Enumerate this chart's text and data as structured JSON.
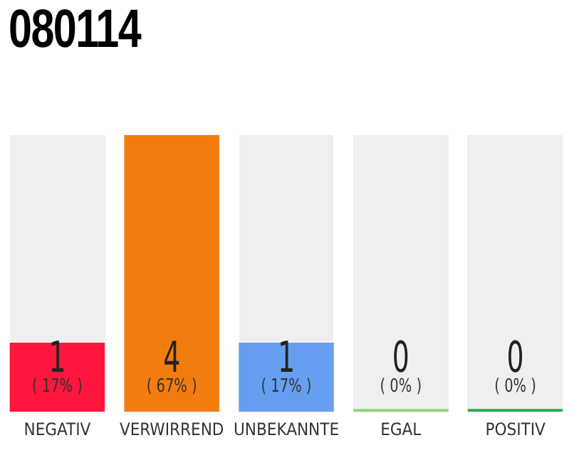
{
  "chart_data": {
    "type": "bar",
    "title": "080114",
    "categories": [
      "NEGATIV",
      "VERWIRREND",
      "UNBEKANNTE",
      "EGAL",
      "POSITIV"
    ],
    "values": [
      1,
      4,
      1,
      0,
      0
    ],
    "colors": [
      "#ff163d",
      "#f27c0d",
      "#679ef0",
      "#8fd47e",
      "#2aaa4a"
    ],
    "ylim": [
      0,
      4
    ],
    "tick_labels": "x",
    "grid": false,
    "legend": false,
    "data_labels": true,
    "annotations": [
      "( 17% )",
      "( 67% )",
      "( 17% )",
      "( 0% )",
      "( 0% )"
    ]
  }
}
